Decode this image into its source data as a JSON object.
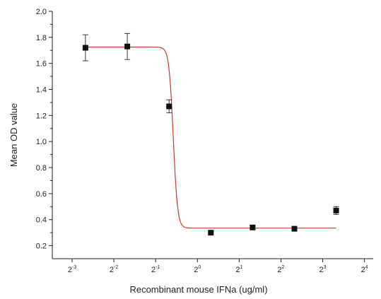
{
  "chart_data": {
    "type": "scatter",
    "xlabel": "Recombinant mouse IFNa (ug/ml)",
    "ylabel": "Mean OD value",
    "x_scale": "log2",
    "x_ticks": [
      {
        "value": 0.125,
        "base": "2",
        "exp": "-3"
      },
      {
        "value": 0.25,
        "base": "2",
        "exp": "-2"
      },
      {
        "value": 0.5,
        "base": "2",
        "exp": "-1"
      },
      {
        "value": 1,
        "base": "2",
        "exp": "0"
      },
      {
        "value": 2,
        "base": "2",
        "exp": "1"
      },
      {
        "value": 4,
        "base": "2",
        "exp": "2"
      },
      {
        "value": 8,
        "base": "2",
        "exp": "3"
      },
      {
        "value": 16,
        "base": "2",
        "exp": "4"
      }
    ],
    "y_ticks": [
      "0.2",
      "0.4",
      "0.6",
      "0.8",
      "1.0",
      "1.2",
      "1.4",
      "1.6",
      "1.8",
      "2.0"
    ],
    "xlim": [
      0.09,
      18.5
    ],
    "ylim": [
      0.1,
      2.0
    ],
    "series": [
      {
        "points": [
          {
            "x": 0.156,
            "y": 1.72,
            "err": 0.1
          },
          {
            "x": 0.3125,
            "y": 1.73,
            "err": 0.1
          },
          {
            "x": 0.625,
            "y": 1.27,
            "err": 0.05
          },
          {
            "x": 1.25,
            "y": 0.3,
            "err": 0.01
          },
          {
            "x": 2.5,
            "y": 0.34,
            "err": 0.01
          },
          {
            "x": 5,
            "y": 0.33,
            "err": 0.015
          },
          {
            "x": 10,
            "y": 0.47,
            "err": 0.03
          }
        ],
        "marker_color": "#111111"
      }
    ],
    "fit": {
      "model": "sigmoid",
      "top": 1.725,
      "bottom": 0.335,
      "ec50": 0.67,
      "hill": 28,
      "x_range": [
        0.156,
        10
      ],
      "color": "#c43c2c"
    },
    "grid": false,
    "legend": "none"
  }
}
